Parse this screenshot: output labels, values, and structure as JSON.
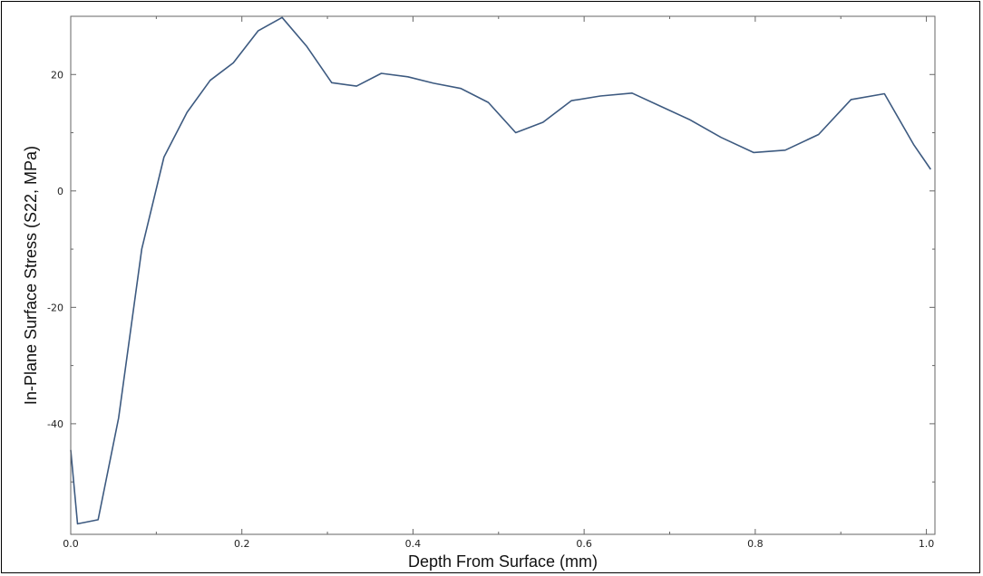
{
  "chart_data": {
    "type": "line",
    "title": "",
    "xlabel": "Depth From Surface (mm)",
    "ylabel": "In-Plane Surface Stress (S22, MPa)",
    "xlim": [
      0.0,
      1.01
    ],
    "ylim": [
      -59,
      30
    ],
    "x_ticks": [
      0.0,
      0.2,
      0.4,
      0.6,
      0.8,
      1.0
    ],
    "x_tick_labels": [
      "0.0",
      "0.2",
      "0.4",
      "0.6",
      "0.8",
      "1.0"
    ],
    "y_ticks": [
      -40,
      -20,
      0,
      20
    ],
    "y_tick_labels": [
      "-40",
      "-20",
      "0",
      "20"
    ],
    "grid": false,
    "line_color": "#3d5a80",
    "series": [
      {
        "x": [
          0.0,
          0.008,
          0.032,
          0.056,
          0.083,
          0.109,
          0.136,
          0.163,
          0.19,
          0.219,
          0.247,
          0.276,
          0.305,
          0.334,
          0.363,
          0.394,
          0.424,
          0.456,
          0.488,
          0.52,
          0.552,
          0.585,
          0.619,
          0.656,
          0.69,
          0.724,
          0.76,
          0.798,
          0.835,
          0.874,
          0.912,
          0.951,
          0.985,
          1.005
        ],
        "y": [
          -44.5,
          -57.2,
          -56.5,
          -39.0,
          -10.0,
          5.8,
          13.5,
          19.0,
          22.0,
          27.5,
          29.8,
          24.8,
          18.6,
          18.0,
          20.2,
          19.6,
          18.5,
          17.6,
          15.2,
          10.0,
          11.8,
          15.5,
          16.3,
          16.8,
          14.5,
          12.2,
          9.2,
          6.6,
          7.0,
          9.7,
          15.7,
          16.7,
          8.0,
          3.7
        ]
      }
    ]
  }
}
